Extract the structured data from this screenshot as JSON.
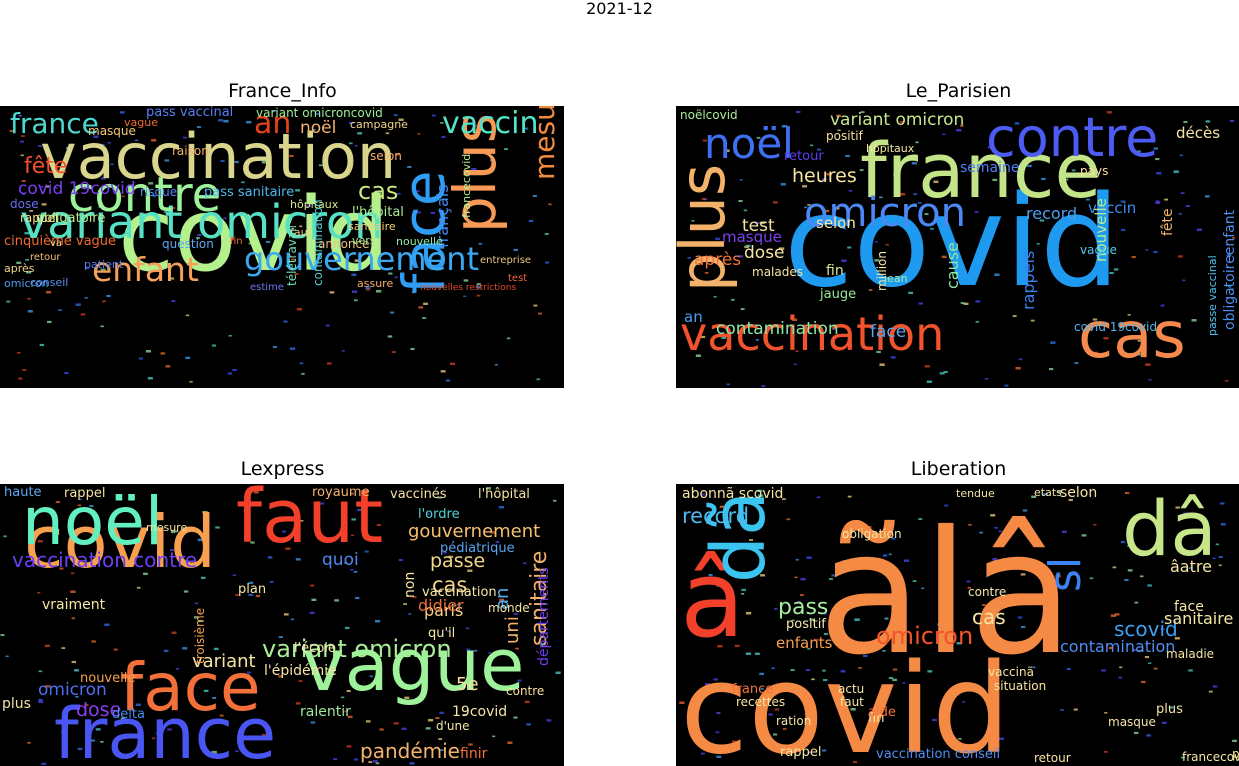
{
  "chart_data": {
    "type": "wordcloud",
    "title": "2021-12",
    "panels": [
      {
        "title": "France_Info",
        "words": [
          {
            "text": "covid",
            "color": "#b4f08c"
          },
          {
            "text": "vaccination",
            "color": "#d9d58c"
          },
          {
            "text": "variant omicron",
            "color": "#56e0c4"
          },
          {
            "text": "contre",
            "color": "#9ef29a"
          },
          {
            "text": "face",
            "color": "#2f9df4"
          },
          {
            "text": "plus",
            "color": "#f79a55"
          },
          {
            "text": "enfant",
            "color": "#f5a05a"
          },
          {
            "text": "gouvernement",
            "color": "#3aa7f0"
          },
          {
            "text": "vaccin",
            "color": "#52e4c8"
          },
          {
            "text": "france",
            "color": "#4dd9cf"
          },
          {
            "text": "fête",
            "color": "#f4502b"
          },
          {
            "text": "mesure",
            "color": "#f08a3e"
          },
          {
            "text": "cas",
            "color": "#c9e884"
          },
          {
            "text": "an",
            "color": "#e2431e"
          },
          {
            "text": "covid 19covid",
            "color": "#7b3ff2"
          },
          {
            "text": "français",
            "color": "#3f8cf0"
          },
          {
            "text": "noël",
            "color": "#f6b26b"
          },
          {
            "text": "cinquième vague",
            "color": "#f26b2e"
          },
          {
            "text": "obligatoire",
            "color": "#b8ec8a"
          },
          {
            "text": "pass vaccinal",
            "color": "#5a7ff5"
          },
          {
            "text": "pass sanitaire",
            "color": "#4fb8ee"
          },
          {
            "text": "variant omicroncovid",
            "color": "#9ef29a"
          },
          {
            "text": "masque",
            "color": "#f6c77a"
          },
          {
            "text": "raison",
            "color": "#f2b06a"
          },
          {
            "text": "risque",
            "color": "#4f88f2"
          },
          {
            "text": "l'hôpital",
            "color": "#a8ee92"
          },
          {
            "text": "hôpitaux",
            "color": "#d7ea8e"
          },
          {
            "text": "sanitaire",
            "color": "#f5d27a"
          },
          {
            "text": "dose",
            "color": "#6f6ff0"
          },
          {
            "text": "rappel",
            "color": "#f3e08a"
          },
          {
            "text": "selon",
            "color": "#f4b26c"
          },
          {
            "text": "faut",
            "color": "#f3d384"
          },
          {
            "text": "patient",
            "color": "#5c7cf4"
          },
          {
            "text": "question",
            "color": "#5fa8f0"
          },
          {
            "text": "annonce",
            "color": "#e8c27e"
          },
          {
            "text": "nouvelle",
            "color": "#8fe9a2"
          },
          {
            "text": "vers",
            "color": "#b0ea8e"
          },
          {
            "text": "télétravail",
            "color": "#6fe0b6"
          },
          {
            "text": "contamination",
            "color": "#4fd0cf"
          },
          {
            "text": "francecovid",
            "color": "#b6ee92"
          },
          {
            "text": "conseil",
            "color": "#5a8ff2"
          },
          {
            "text": "assure",
            "color": "#f5b06c"
          },
          {
            "text": "estime",
            "color": "#6e76f0"
          },
          {
            "text": "test",
            "color": "#f0653a"
          },
          {
            "text": "après",
            "color": "#f2d68a"
          },
          {
            "text": "omicron",
            "color": "#4f9cf0"
          },
          {
            "text": "entreprise",
            "color": "#e8c57e"
          },
          {
            "text": "nouvelles restrictions",
            "color": "#e04a2a"
          },
          {
            "text": "vague",
            "color": "#f26b2e"
          },
          {
            "text": "campagne",
            "color": "#f3d68a"
          },
          {
            "text": "va",
            "color": "#f3d88a"
          },
          {
            "text": "fin",
            "color": "#f06a38"
          },
          {
            "text": "retour",
            "color": "#f2c078"
          }
        ]
      },
      {
        "title": "Le_Parisien",
        "words": [
          {
            "text": "covid",
            "color": "#1e9bf0"
          },
          {
            "text": "france",
            "color": "#c3e488"
          },
          {
            "text": "vaccination",
            "color": "#f2532d"
          },
          {
            "text": "cas",
            "color": "#f58a4c"
          },
          {
            "text": "contre",
            "color": "#4c5cf3"
          },
          {
            "text": "plus",
            "color": "#f2b26c"
          },
          {
            "text": "noël",
            "color": "#3f6ff2"
          },
          {
            "text": "omicron",
            "color": "#4a88f3"
          },
          {
            "text": "variant omicron",
            "color": "#c7e68a"
          },
          {
            "text": "heures",
            "color": "#f4e4a2"
          },
          {
            "text": "test",
            "color": "#f4e4a2"
          },
          {
            "text": "dose",
            "color": "#f5e6a4"
          },
          {
            "text": "contamination",
            "color": "#88e6a6"
          },
          {
            "text": "face",
            "color": "#5aa6f2"
          },
          {
            "text": "après",
            "color": "#f3743a"
          },
          {
            "text": "masque",
            "color": "#7f3ff2"
          },
          {
            "text": "selon",
            "color": "#f4e8a6"
          },
          {
            "text": "fin",
            "color": "#d8ea92"
          },
          {
            "text": "jauge",
            "color": "#9ee89a"
          },
          {
            "text": "cause",
            "color": "#8ce8a6"
          },
          {
            "text": "rappels",
            "color": "#3c82f2"
          },
          {
            "text": "record",
            "color": "#4c9ff2"
          },
          {
            "text": "vaccin",
            "color": "#3c8ff2"
          },
          {
            "text": "nouvelle",
            "color": "#b8ec90"
          },
          {
            "text": "fête",
            "color": "#f4b26c"
          },
          {
            "text": "décès",
            "color": "#f4e4a4"
          },
          {
            "text": "obligatoireenfant",
            "color": "#4c8ff2"
          },
          {
            "text": "semaine",
            "color": "#4f7ff3"
          },
          {
            "text": "positif",
            "color": "#f5e0a0"
          },
          {
            "text": "retour",
            "color": "#5c3ff2"
          },
          {
            "text": "malades",
            "color": "#f4e4a4"
          },
          {
            "text": "million",
            "color": "#f4e8a8"
          },
          {
            "text": "an",
            "color": "#4c9ff2"
          },
          {
            "text": "covid 19covid",
            "color": "#4fb8f0"
          },
          {
            "text": "vague",
            "color": "#56c8ee"
          },
          {
            "text": "pays",
            "color": "#f4e0a0"
          },
          {
            "text": "noëlcovid",
            "color": "#a8ec96"
          },
          {
            "text": "jean",
            "color": "#a6eca0"
          },
          {
            "text": "hôpitaux",
            "color": "#f4e8a8"
          },
          {
            "text": "passe vaccinal",
            "color": "#4fc2ef"
          }
        ]
      },
      {
        "title": "Lexpress",
        "words": [
          {
            "text": "covid",
            "color": "#f7a050"
          },
          {
            "text": "noël",
            "color": "#62f0c0"
          },
          {
            "text": "faut",
            "color": "#f2402a"
          },
          {
            "text": "vague",
            "color": "#9ef29a"
          },
          {
            "text": "france",
            "color": "#4a56f3"
          },
          {
            "text": "face",
            "color": "#f4703a"
          },
          {
            "text": "vaccination contre",
            "color": "#6a3ff2"
          },
          {
            "text": "gouvernement",
            "color": "#f6c070"
          },
          {
            "text": "variant omicron",
            "color": "#a8ee96"
          },
          {
            "text": "pandémie",
            "color": "#f4b46c"
          },
          {
            "text": "omicron",
            "color": "#4f6ff3"
          },
          {
            "text": "sanitaire",
            "color": "#f2b06a"
          },
          {
            "text": "passe",
            "color": "#f5d886"
          },
          {
            "text": "paris",
            "color": "#f4d488"
          },
          {
            "text": "cas",
            "color": "#f3d486"
          },
          {
            "text": "dose",
            "color": "#8a3ff2"
          },
          {
            "text": "variant",
            "color": "#f5e4a0"
          },
          {
            "text": "quoi",
            "color": "#4f88f3"
          },
          {
            "text": "5e",
            "color": "#f6e0a0"
          },
          {
            "text": "uni",
            "color": "#f4b46c"
          },
          {
            "text": "an",
            "color": "#4fb0ef"
          },
          {
            "text": "rappel",
            "color": "#f5e0a0"
          },
          {
            "text": "royaume",
            "color": "#f4b46c"
          },
          {
            "text": "vaccinés",
            "color": "#f6e4a4"
          },
          {
            "text": "l'hôpital",
            "color": "#f4e4a4"
          },
          {
            "text": "l'ordre",
            "color": "#4fd6d4"
          },
          {
            "text": "pédiatrique",
            "color": "#5aa6f2"
          },
          {
            "text": "didier",
            "color": "#f3703a"
          },
          {
            "text": "vaccination",
            "color": "#f5e8a6"
          },
          {
            "text": "qu'il",
            "color": "#f5e6a4"
          },
          {
            "text": "l'épidémie",
            "color": "#f4e4a4"
          },
          {
            "text": "l'école",
            "color": "#f5e8a8"
          },
          {
            "text": "ralentir",
            "color": "#9ee89a"
          },
          {
            "text": "19covid",
            "color": "#f5e6a4"
          },
          {
            "text": "contre",
            "color": "#f5e0a0"
          },
          {
            "text": "départements",
            "color": "#6f3ff2"
          },
          {
            "text": "nouvelle",
            "color": "#f5a050"
          },
          {
            "text": "delta",
            "color": "#3f8ff2"
          },
          {
            "text": "vraiment",
            "color": "#f5e8a8"
          },
          {
            "text": "plan",
            "color": "#f5e4a4"
          },
          {
            "text": "monde",
            "color": "#f4e4a4"
          },
          {
            "text": "plus",
            "color": "#f5e4a4"
          },
          {
            "text": "haute",
            "color": "#5aa6f2"
          },
          {
            "text": "mesure",
            "color": "#f5e6a4"
          },
          {
            "text": "troisième",
            "color": "#f5a050"
          },
          {
            "text": "finir",
            "color": "#f3703a"
          },
          {
            "text": "d'une",
            "color": "#f5e6a4"
          },
          {
            "text": "non",
            "color": "#f5e4a4"
          }
        ]
      },
      {
        "title": "Liberation",
        "words": [
          {
            "text": "covid",
            "color": "#f58a44"
          },
          {
            "text": "ãlâ",
            "color": "#f58a44"
          },
          {
            "text": "dâ",
            "color": "#c7e68a"
          },
          {
            "text": "â",
            "color": "#f2402a"
          },
          {
            "text": "dã",
            "color": "#3cc4f0"
          },
          {
            "text": "omicron",
            "color": "#f2532d"
          },
          {
            "text": "scovid",
            "color": "#3c9ff2"
          },
          {
            "text": "cas",
            "color": "#f5e6a4"
          },
          {
            "text": "sl",
            "color": "#3c82f2"
          },
          {
            "text": "record",
            "color": "#4fb8f0"
          },
          {
            "text": "pass",
            "color": "#a8eca0"
          },
          {
            "text": "abonnã scovid",
            "color": "#f5e6a4"
          },
          {
            "text": "selon",
            "color": "#f5e6a4"
          },
          {
            "text": "sanitaire",
            "color": "#f5e6a4"
          },
          {
            "text": "contamination",
            "color": "#4f8ff3"
          },
          {
            "text": "âatre",
            "color": "#f5e6a4"
          },
          {
            "text": "enfants",
            "color": "#f5a050"
          },
          {
            "text": "positif",
            "color": "#f5e8a8"
          },
          {
            "text": "obligation",
            "color": "#f5e6a4"
          },
          {
            "text": "france",
            "color": "#f3703a"
          },
          {
            "text": "face",
            "color": "#f5e6a4"
          },
          {
            "text": "contre",
            "color": "#f5e8a8"
          },
          {
            "text": "vaccinã",
            "color": "#f5e6a4"
          },
          {
            "text": "vaccination conseil",
            "color": "#4f8ff3"
          },
          {
            "text": "retour",
            "color": "#f5e6a4"
          },
          {
            "text": "plus",
            "color": "#f5e4a4"
          },
          {
            "text": "masque",
            "color": "#f5e6a4"
          },
          {
            "text": "fin",
            "color": "#f5e8a8"
          },
          {
            "text": "aide",
            "color": "#f3703a"
          },
          {
            "text": "faut",
            "color": "#f5e6a4"
          },
          {
            "text": "rappel",
            "color": "#f5e6a4"
          },
          {
            "text": "francecovid",
            "color": "#f5e6a4"
          },
          {
            "text": "pourrait",
            "color": "#f5e6a4"
          },
          {
            "text": "situation",
            "color": "#f5e6a4"
          },
          {
            "text": "recettes",
            "color": "#f5e6a4"
          },
          {
            "text": "maladie",
            "color": "#f5e6a4"
          },
          {
            "text": "etats",
            "color": "#f5e6a4"
          },
          {
            "text": "tendue",
            "color": "#f5e6a4"
          },
          {
            "text": "actu",
            "color": "#f5e6a4"
          },
          {
            "text": "ration",
            "color": "#f5e6a4"
          }
        ]
      }
    ]
  }
}
